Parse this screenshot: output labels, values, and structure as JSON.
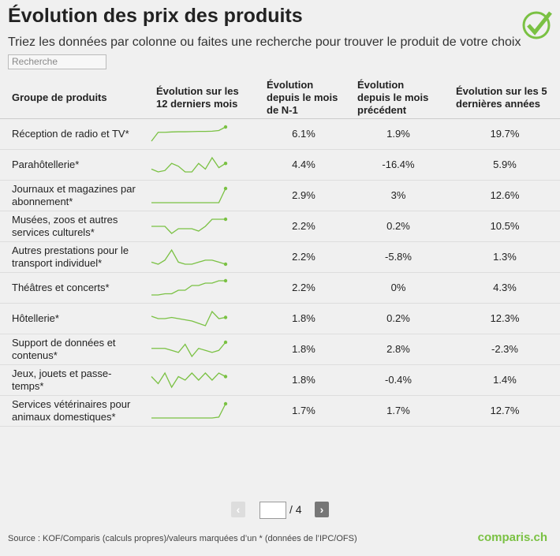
{
  "header": {
    "title": "Évolution des prix des produits",
    "subtitle": "Triez les données par colonne ou faites une recherche pour trouver le produit de votre choix"
  },
  "search": {
    "placeholder": "Recherche"
  },
  "table": {
    "columns": [
      "Groupe de produits",
      "Évolution sur les 12 derniers mois",
      "Évolution depuis le mois de N-1",
      "Évolution depuis le mois précédent",
      "Évolution sur les 5 dernières années"
    ],
    "rows": [
      {
        "group": "Réception de radio et TV*",
        "trend": [
          0,
          5,
          5,
          5.2,
          5.3,
          5.3,
          5.4,
          5.5,
          5.5,
          5.6,
          6,
          8
        ],
        "n1": "6.1%",
        "prev": "1.9%",
        "five": "19.7%"
      },
      {
        "group": "Parahôtellerie*",
        "trend": [
          3,
          2,
          2.5,
          5,
          4,
          2,
          2,
          5,
          3,
          7,
          3.5,
          5
        ],
        "n1": "4.4%",
        "prev": "-16.4%",
        "five": "5.9%"
      },
      {
        "group": "Journaux et magazines par abonnement*",
        "trend": [
          0,
          0,
          0,
          0,
          0,
          0,
          0,
          0,
          0,
          0,
          0,
          8
        ],
        "n1": "2.9%",
        "prev": "3%",
        "five": "12.6%"
      },
      {
        "group": "Musées, zoos et autres services culturels*",
        "trend": [
          4,
          4,
          4,
          1,
          3,
          3,
          3,
          2,
          4,
          7,
          7,
          7
        ],
        "n1": "2.2%",
        "prev": "0.2%",
        "five": "10.5%"
      },
      {
        "group": "Autres prestations pour le transport individuel*",
        "trend": [
          3,
          2,
          4,
          9,
          3,
          2,
          2,
          3,
          4,
          4,
          3,
          2
        ],
        "n1": "2.2%",
        "prev": "-5.8%",
        "five": "1.3%"
      },
      {
        "group": "Théâtres et concerts*",
        "trend": [
          0,
          0,
          0.5,
          0.5,
          2,
          2,
          4,
          4,
          5,
          5,
          6,
          6
        ],
        "n1": "2.2%",
        "prev": "0%",
        "five": "4.3%"
      },
      {
        "group": "Hôtellerie*",
        "trend": [
          5,
          4,
          4,
          4.5,
          4,
          3.5,
          3,
          2,
          1,
          7,
          4,
          4.5
        ],
        "n1": "1.8%",
        "prev": "0.2%",
        "five": "12.3%"
      },
      {
        "group": "Support de données et contenus*",
        "trend": [
          5,
          5,
          5,
          4,
          3,
          7,
          1,
          5,
          4,
          3,
          4,
          8
        ],
        "n1": "1.8%",
        "prev": "2.8%",
        "five": "-2.3%"
      },
      {
        "group": "Jeux, jouets et passe-temps*",
        "trend": [
          4,
          2,
          5,
          1,
          4,
          3,
          5,
          3,
          5,
          3,
          5,
          4
        ],
        "n1": "1.8%",
        "prev": "-0.4%",
        "five": "1.4%"
      },
      {
        "group": "Services vétérinaires pour animaux domestiques*",
        "trend": [
          0,
          0,
          0,
          0,
          0,
          0,
          0,
          0,
          0,
          0,
          0.5,
          8
        ],
        "n1": "1.7%",
        "prev": "1.7%",
        "five": "12.7%"
      }
    ]
  },
  "pagination": {
    "prev": "‹",
    "next": "›",
    "total": "/ 4"
  },
  "footer": {
    "source": "Source : KOF/Comparis (calculs propres)/valeurs marquées d’un * (données de l’IPC/OFS)",
    "logo": "comparis.ch"
  }
}
